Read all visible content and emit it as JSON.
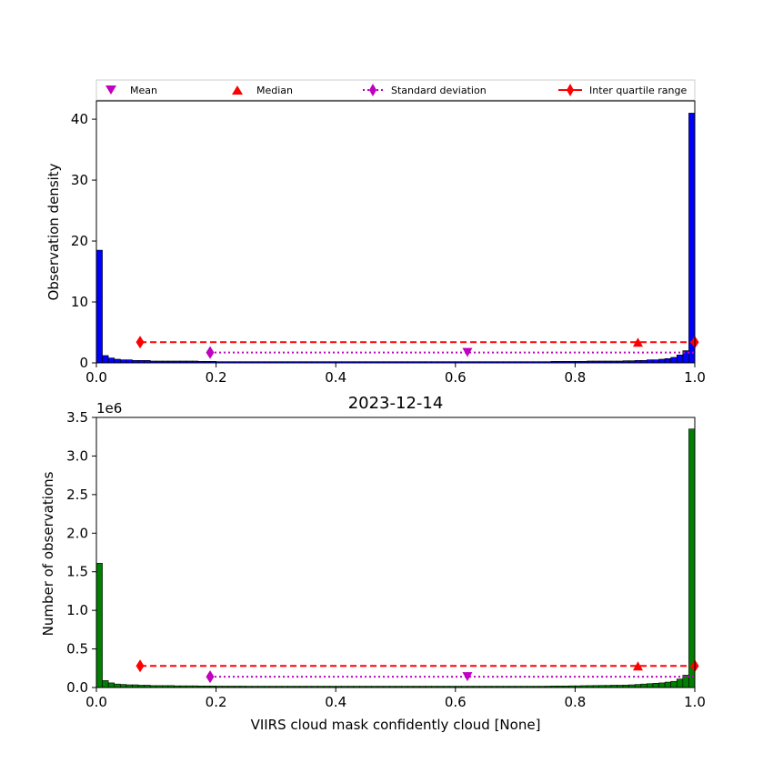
{
  "chart_data": [
    {
      "type": "bar",
      "panel": "top",
      "title": "",
      "xlabel": "",
      "ylabel": "Observation density",
      "xlim": [
        0,
        1
      ],
      "ylim": [
        0,
        43
      ],
      "xticks": [
        "0.0",
        "0.2",
        "0.4",
        "0.6",
        "0.8",
        "1.0"
      ],
      "yticks": [
        "0",
        "10",
        "20",
        "30",
        "40"
      ],
      "bar_color": "#0000ff",
      "bin_width": 0.01,
      "values": [
        18.5,
        1.2,
        0.8,
        0.6,
        0.5,
        0.5,
        0.4,
        0.4,
        0.4,
        0.3,
        0.3,
        0.3,
        0.3,
        0.3,
        0.3,
        0.3,
        0.3,
        0.25,
        0.25,
        0.25,
        0.2,
        0.2,
        0.2,
        0.2,
        0.2,
        0.2,
        0.2,
        0.2,
        0.2,
        0.2,
        0.2,
        0.2,
        0.2,
        0.2,
        0.2,
        0.2,
        0.2,
        0.2,
        0.2,
        0.2,
        0.2,
        0.2,
        0.2,
        0.2,
        0.2,
        0.2,
        0.2,
        0.2,
        0.2,
        0.2,
        0.2,
        0.2,
        0.2,
        0.2,
        0.2,
        0.2,
        0.2,
        0.2,
        0.2,
        0.2,
        0.2,
        0.2,
        0.2,
        0.2,
        0.2,
        0.2,
        0.2,
        0.2,
        0.2,
        0.2,
        0.2,
        0.2,
        0.2,
        0.2,
        0.2,
        0.2,
        0.25,
        0.25,
        0.25,
        0.25,
        0.25,
        0.25,
        0.3,
        0.3,
        0.3,
        0.3,
        0.3,
        0.3,
        0.35,
        0.35,
        0.4,
        0.4,
        0.5,
        0.5,
        0.6,
        0.7,
        0.9,
        1.3,
        2.0,
        41.0
      ],
      "stats": {
        "mean": {
          "x": 0.62,
          "y": 1.7
        },
        "median": {
          "x": 0.905,
          "y": 3.4
        },
        "std": {
          "x": [
            0.19,
            1.0
          ],
          "y": 1.7
        },
        "iqr": {
          "x": [
            0.073,
            1.0
          ],
          "y": 3.4
        }
      }
    },
    {
      "type": "bar",
      "panel": "bottom",
      "title": "2023-12-14",
      "xlabel": "VIIRS cloud mask confidently cloud [None]",
      "ylabel": "Number of observations",
      "y_offset_label": "1e6",
      "xlim": [
        0,
        1
      ],
      "ylim": [
        0,
        3.5
      ],
      "xticks": [
        "0.0",
        "0.2",
        "0.4",
        "0.6",
        "0.8",
        "1.0"
      ],
      "yticks": [
        "0.0",
        "0.5",
        "1.0",
        "1.5",
        "2.0",
        "2.5",
        "3.0",
        "3.5"
      ],
      "bar_color": "#008000",
      "bin_width": 0.01,
      "values": [
        1.61,
        0.09,
        0.06,
        0.045,
        0.04,
        0.035,
        0.035,
        0.03,
        0.03,
        0.025,
        0.025,
        0.025,
        0.025,
        0.022,
        0.022,
        0.022,
        0.022,
        0.02,
        0.02,
        0.02,
        0.018,
        0.018,
        0.018,
        0.018,
        0.018,
        0.017,
        0.017,
        0.017,
        0.017,
        0.017,
        0.017,
        0.017,
        0.017,
        0.017,
        0.017,
        0.017,
        0.017,
        0.017,
        0.017,
        0.017,
        0.017,
        0.017,
        0.017,
        0.017,
        0.017,
        0.017,
        0.017,
        0.017,
        0.017,
        0.017,
        0.017,
        0.017,
        0.017,
        0.017,
        0.017,
        0.017,
        0.017,
        0.017,
        0.017,
        0.017,
        0.017,
        0.017,
        0.017,
        0.017,
        0.017,
        0.017,
        0.017,
        0.017,
        0.017,
        0.017,
        0.017,
        0.017,
        0.017,
        0.017,
        0.017,
        0.018,
        0.02,
        0.02,
        0.02,
        0.022,
        0.022,
        0.024,
        0.025,
        0.026,
        0.027,
        0.028,
        0.03,
        0.03,
        0.032,
        0.035,
        0.04,
        0.045,
        0.05,
        0.055,
        0.06,
        0.07,
        0.08,
        0.11,
        0.16,
        3.35
      ],
      "stats": {
        "mean": {
          "x": 0.62,
          "y": 0.14
        },
        "median": {
          "x": 0.905,
          "y": 0.28
        },
        "std": {
          "x": [
            0.19,
            1.0
          ],
          "y": 0.14
        },
        "iqr": {
          "x": [
            0.073,
            1.0
          ],
          "y": 0.28
        }
      }
    }
  ],
  "legend": {
    "placement": "top",
    "entries": [
      {
        "label": "Mean",
        "marker": "triangle-down",
        "color": "#bf00bf"
      },
      {
        "label": "Median",
        "marker": "triangle-up",
        "color": "#ff0000"
      },
      {
        "label": "Standard deviation",
        "marker": "diamond",
        "color": "#bf00bf",
        "line": "dotted"
      },
      {
        "label": "Inter quartile range",
        "marker": "diamond",
        "color": "#ff0000",
        "line": "solid"
      }
    ]
  }
}
